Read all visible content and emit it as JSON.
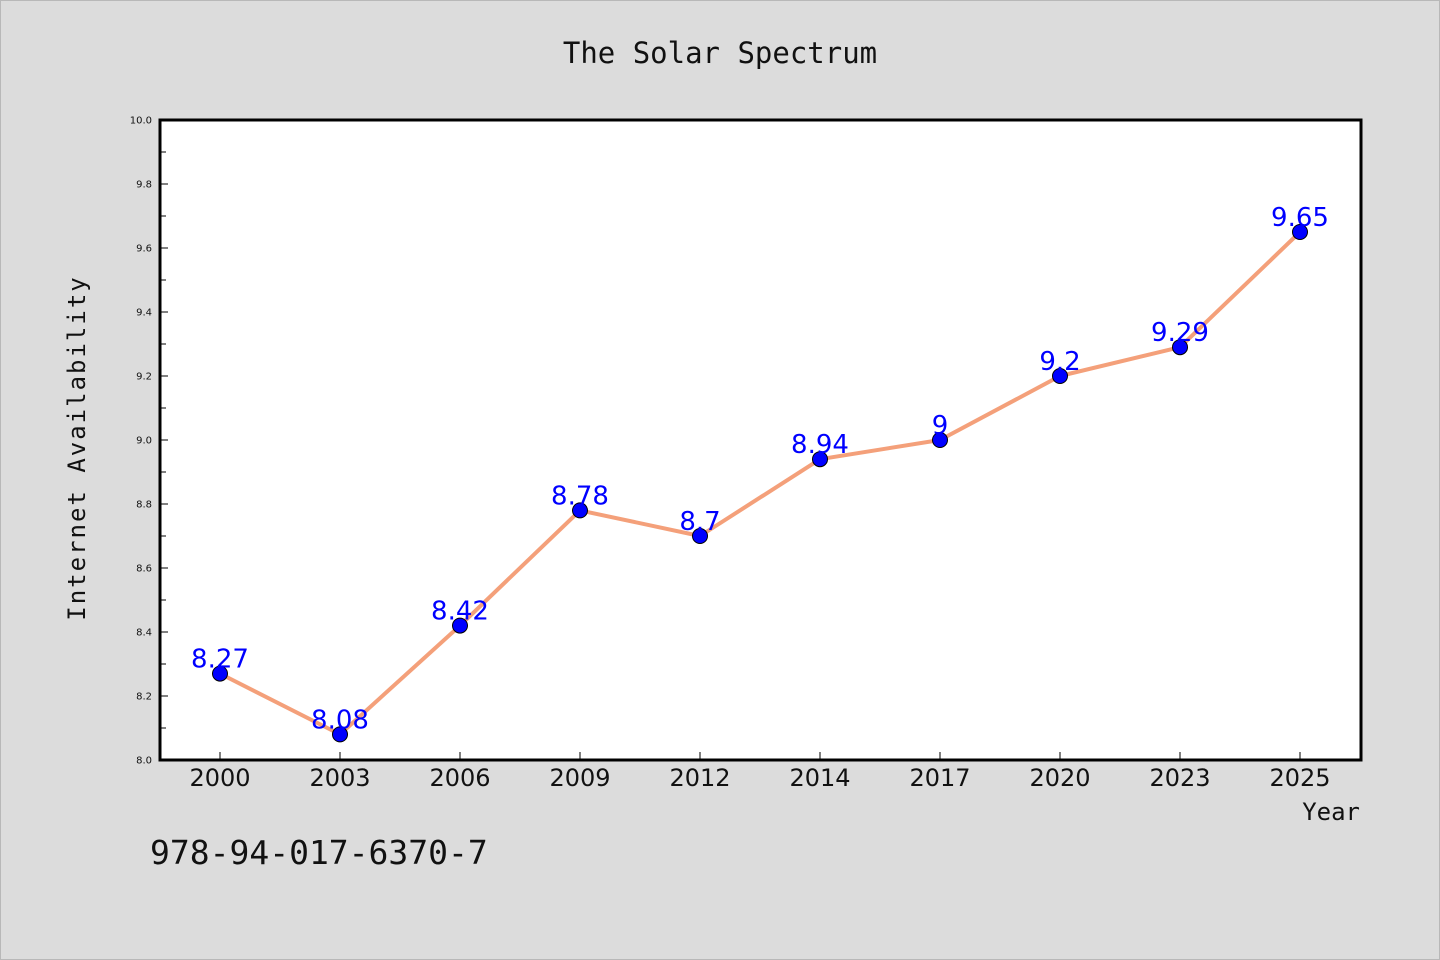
{
  "chart_data": {
    "type": "line",
    "title": "The Solar Spectrum",
    "xlabel": "Year",
    "ylabel": "Internet Availability",
    "categories": [
      "2000",
      "2003",
      "2006",
      "2009",
      "2012",
      "2014",
      "2017",
      "2020",
      "2023",
      "2025"
    ],
    "series": [
      {
        "values": [
          8.27,
          8.08,
          8.42,
          8.78,
          8.7,
          8.94,
          9,
          9.2,
          9.29,
          9.65
        ],
        "labels": [
          "8.27",
          "8.08",
          "8.42",
          "8.78",
          "8.7",
          "8.94",
          "9",
          "9.2",
          "9.29",
          "9.65"
        ]
      }
    ],
    "ylim": [
      8.0,
      10.0
    ],
    "y_ticks": [
      "8.0",
      "8.2",
      "8.4",
      "8.6",
      "8.8",
      "9.0",
      "9.2",
      "9.4",
      "9.6",
      "9.8",
      "10.0"
    ],
    "grid": false,
    "colors": {
      "line": "#f4a07a",
      "marker": "#0000ff",
      "marker_edge": "#000000",
      "data_label": "#0000ff",
      "plot_background": "#ffffff",
      "figure_background": "#dcdcdc"
    }
  },
  "footer_text": "978-94-017-6370-7"
}
